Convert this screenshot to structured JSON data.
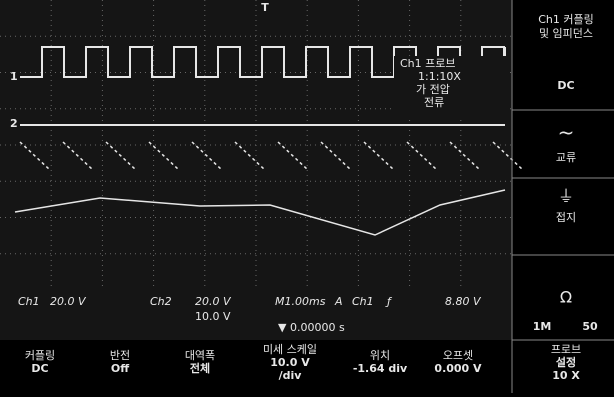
{
  "screen": {
    "markers": {
      "trigger": "T",
      "ch1": "1",
      "ch2": "2"
    },
    "probe_popup": [
      "Ch1 프로브",
      "1:1:10X",
      "가 전압",
      "전류"
    ],
    "status": {
      "ch1": "Ch1",
      "ch1_scale": "20.0 V",
      "ch2": "Ch2",
      "ch2_scale": "20.0 V",
      "ch2_fine": "10.0 V",
      "timebase": "M1.00ms",
      "trigger_mode": "A",
      "trigger_source": "Ch1",
      "trigger_slope": "ƒ",
      "trigger_level": "8.80 V",
      "position": "▼ 0.00000 s"
    }
  },
  "side_menu": {
    "title": [
      "Ch1 커플링",
      "및 임피던스"
    ],
    "dc": "DC",
    "ac_icon": "~",
    "ac": "교류",
    "gnd_icon": "⏚",
    "gnd": "접지",
    "ohm": "Ω",
    "imp_1m": "1M",
    "imp_50": "50"
  },
  "bottom_menu": [
    [
      "커플링",
      "DC"
    ],
    [
      "반전",
      "Off"
    ],
    [
      "대역폭",
      "전체"
    ],
    [
      "미세 스케일",
      "10.0 V",
      "/div"
    ],
    [
      "위치",
      "-1.64 div"
    ],
    [
      "오프셋",
      "0.000 V"
    ],
    [
      "프로브",
      "설정",
      "10 X"
    ]
  ]
}
